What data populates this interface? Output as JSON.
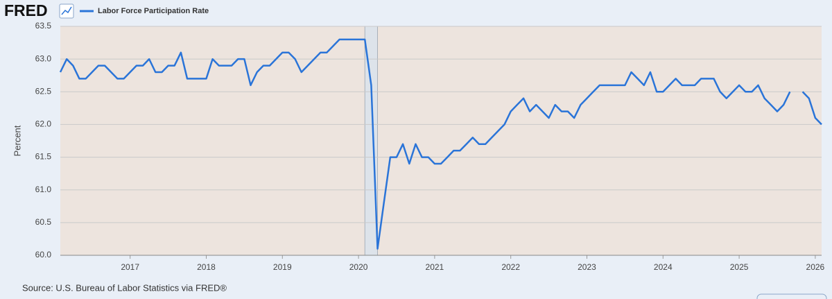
{
  "brand": "FRED",
  "source": "Source: U.S. Bureau of Labor Statistics via FRED®",
  "chart_data": {
    "type": "line",
    "y_label": "Percent",
    "x": [
      2016.083,
      2016.167,
      2016.25,
      2016.333,
      2016.417,
      2016.5,
      2016.583,
      2016.667,
      2016.75,
      2016.833,
      2016.917,
      2017,
      2017.083,
      2017.167,
      2017.25,
      2017.333,
      2017.417,
      2017.5,
      2017.583,
      2017.667,
      2017.75,
      2017.833,
      2017.917,
      2018,
      2018.083,
      2018.167,
      2018.25,
      2018.333,
      2018.417,
      2018.5,
      2018.583,
      2018.667,
      2018.75,
      2018.833,
      2018.917,
      2019,
      2019.083,
      2019.167,
      2019.25,
      2019.333,
      2019.417,
      2019.5,
      2019.583,
      2019.667,
      2019.75,
      2019.833,
      2019.917,
      2020,
      2020.083,
      2020.167,
      2020.25,
      2020.333,
      2020.417,
      2020.5,
      2020.583,
      2020.667,
      2020.75,
      2020.833,
      2020.917,
      2021,
      2021.083,
      2021.167,
      2021.25,
      2021.333,
      2021.417,
      2021.5,
      2021.583,
      2021.667,
      2021.75,
      2021.833,
      2021.917,
      2022,
      2022.083,
      2022.167,
      2022.25,
      2022.333,
      2022.417,
      2022.5,
      2022.583,
      2022.667,
      2022.75,
      2022.833,
      2022.917,
      2023,
      2023.083,
      2023.167,
      2023.25,
      2023.333,
      2023.417,
      2023.5,
      2023.583,
      2023.667,
      2023.75,
      2023.833,
      2023.917,
      2024,
      2024.083,
      2024.167,
      2024.25,
      2024.333,
      2024.417,
      2024.5,
      2024.583,
      2024.667,
      2024.75,
      2024.833,
      2024.917,
      2025,
      2025.083,
      2025.167,
      2025.25,
      2025.333,
      2025.417,
      2025.5,
      2025.583,
      2025.667,
      2025.75,
      2025.833,
      2025.917,
      2026,
      2026.083
    ],
    "series": [
      {
        "name": "Labor Force Participation Rate",
        "color": "#2a74d8",
        "values": [
          62.8,
          63.0,
          62.9,
          62.7,
          62.7,
          62.8,
          62.9,
          62.9,
          62.8,
          62.7,
          62.7,
          62.8,
          62.9,
          62.9,
          63.0,
          62.8,
          62.8,
          62.9,
          62.9,
          63.1,
          62.7,
          62.7,
          62.7,
          62.7,
          63.0,
          62.9,
          62.9,
          62.9,
          63.0,
          63.0,
          62.6,
          62.8,
          62.9,
          62.9,
          63.0,
          63.1,
          63.1,
          63.0,
          62.8,
          62.9,
          63.0,
          63.1,
          63.1,
          63.2,
          63.3,
          63.3,
          63.3,
          63.3,
          63.3,
          62.6,
          60.1,
          60.8,
          61.5,
          61.5,
          61.7,
          61.4,
          61.7,
          61.5,
          61.5,
          61.4,
          61.4,
          61.5,
          61.6,
          61.6,
          61.7,
          61.8,
          61.7,
          61.7,
          61.8,
          61.9,
          62.0,
          62.2,
          62.3,
          62.4,
          62.2,
          62.3,
          62.2,
          62.1,
          62.3,
          62.2,
          62.2,
          62.1,
          62.3,
          62.4,
          62.5,
          62.6,
          62.6,
          62.6,
          62.6,
          62.6,
          62.8,
          62.7,
          62.6,
          62.8,
          62.5,
          62.5,
          62.6,
          62.7,
          62.6,
          62.6,
          62.6,
          62.7,
          62.7,
          62.7,
          62.5,
          62.4,
          62.5,
          62.6,
          62.5,
          62.5,
          62.6,
          62.4,
          62.3,
          62.2,
          62.3,
          62.5,
          null,
          62.5,
          62.4,
          62.1,
          62.0
        ]
      }
    ],
    "shaded_ranges": [
      [
        2020.083,
        2020.25
      ]
    ],
    "xlim": [
      2016.083,
      2026.083
    ],
    "xticks": [
      2017,
      2018,
      2019,
      2020,
      2021,
      2022,
      2023,
      2024,
      2025,
      2026
    ],
    "ylim": [
      60,
      63.5
    ],
    "yticks": [
      {
        "value": 60,
        "label": "60.0"
      },
      60.5,
      {
        "value": 61,
        "label": "61.0"
      },
      61.5,
      {
        "value": 62,
        "label": "62.0"
      },
      62.5,
      {
        "value": 63,
        "label": "63.0"
      },
      63.5
    ],
    "grid": true
  }
}
